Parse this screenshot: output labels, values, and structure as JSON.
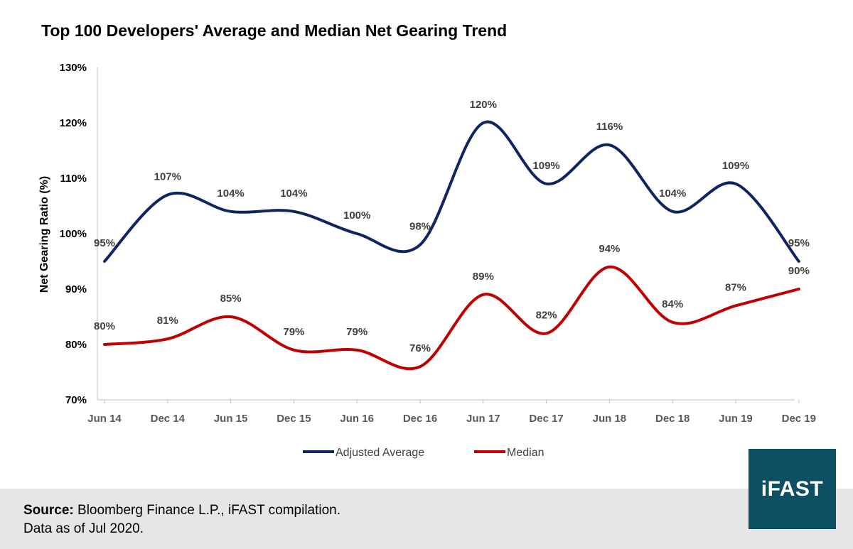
{
  "chart_data": {
    "type": "line",
    "title": "Top 100 Developers' Average and Median Net Gearing Trend",
    "xlabel": "",
    "ylabel": "Net Gearing Ratio (%)",
    "ylim": [
      70,
      130
    ],
    "yticks": [
      "70%",
      "80%",
      "90%",
      "100%",
      "110%",
      "120%",
      "130%"
    ],
    "categories": [
      "Jun 14",
      "Dec 14",
      "Jun 15",
      "Dec 15",
      "Jun 16",
      "Dec 16",
      "Jun 17",
      "Dec 17",
      "Jun 18",
      "Dec 18",
      "Jun 19",
      "Dec 19"
    ],
    "series": [
      {
        "name": "Adjusted Average",
        "color": "#0f2460",
        "values": [
          95,
          107,
          104,
          104,
          100,
          98,
          120,
          109,
          116,
          104,
          109,
          95
        ],
        "labels": [
          "95%",
          "107%",
          "104%",
          "104%",
          "100%",
          "98%",
          "120%",
          "109%",
          "116%",
          "104%",
          "109%",
          "95%"
        ]
      },
      {
        "name": "Median",
        "color": "#c00000",
        "values": [
          80,
          81,
          85,
          79,
          79,
          76,
          89,
          82,
          94,
          84,
          87,
          90
        ],
        "labels": [
          "80%",
          "81%",
          "85%",
          "79%",
          "79%",
          "76%",
          "89%",
          "82%",
          "94%",
          "84%",
          "87%",
          "90%"
        ]
      }
    ],
    "grid": false,
    "legend": "bottom"
  },
  "footer": {
    "source_label": "Source:",
    "source_text": " Bloomberg Finance L.P., iFAST compilation.",
    "data_as_of": "Data as of Jul 2020."
  },
  "logo": {
    "text": "iFAST",
    "color": "#0d4f63"
  }
}
